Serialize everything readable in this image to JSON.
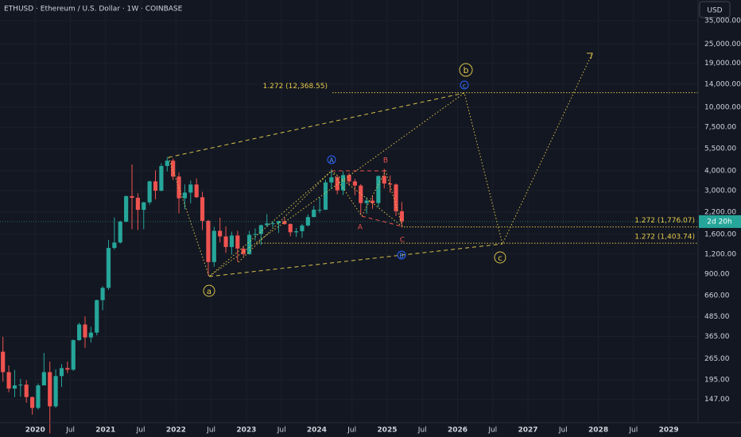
{
  "chart_data": {
    "type": "candlestick",
    "title": "ETHUSD · Ethereum / U.S. Dollar · 1W · COINBASE",
    "currency": "USD",
    "countdown": "2d 20h",
    "x": [
      "2019-07",
      "2019-08",
      "2019-09",
      "2019-10",
      "2019-11",
      "2019-12",
      "2020-01",
      "2020-02",
      "2020-03",
      "2020-04",
      "2020-05",
      "2020-06",
      "2020-07",
      "2020-08",
      "2020-09",
      "2020-10",
      "2020-11",
      "2020-12",
      "2021-01",
      "2021-02",
      "2021-03",
      "2021-04",
      "2021-05",
      "2021-06",
      "2021-07",
      "2021-08",
      "2021-09",
      "2021-10",
      "2021-11",
      "2021-12",
      "2022-01",
      "2022-02",
      "2022-03",
      "2022-04",
      "2022-05",
      "2022-06",
      "2022-07",
      "2022-08",
      "2022-09",
      "2022-10",
      "2022-11",
      "2022-12",
      "2023-01",
      "2023-02",
      "2023-03",
      "2023-04",
      "2023-05",
      "2023-06",
      "2023-07",
      "2023-08",
      "2023-09",
      "2023-10",
      "2023-11",
      "2023-12",
      "2024-01",
      "2024-02",
      "2024-03",
      "2024-04",
      "2024-05",
      "2024-06",
      "2024-07",
      "2024-08",
      "2024-09",
      "2024-10",
      "2024-11",
      "2024-12",
      "2025-01",
      "2025-02",
      "2025-03"
    ],
    "open": [
      293,
      218,
      172,
      180,
      182,
      152,
      130,
      180,
      218,
      133,
      206,
      231,
      226,
      346,
      434,
      360,
      386,
      617,
      737,
      1312,
      1419,
      1919,
      2773,
      2709,
      2275,
      2536,
      3434,
      3000,
      4288,
      4630,
      3680,
      2690,
      2920,
      3280,
      2730,
      1940,
      1070,
      1680,
      1550,
      1330,
      1570,
      1300,
      1200,
      1585,
      1605,
      1822,
      1870,
      1875,
      1935,
      1855,
      1645,
      1670,
      1815,
      2050,
      2280,
      2280,
      3380,
      3640,
      3015,
      3760,
      3430,
      3230,
      2510,
      2600,
      2510,
      3710,
      3330,
      3280,
      2230
    ],
    "high": [
      363,
      240,
      225,
      198,
      194,
      153,
      185,
      288,
      254,
      227,
      245,
      254,
      350,
      446,
      488,
      420,
      622,
      754,
      1475,
      2040,
      1948,
      2797,
      4380,
      2890,
      2550,
      3470,
      4028,
      4460,
      4890,
      4780,
      3900,
      3280,
      3480,
      3580,
      2950,
      1970,
      1780,
      2030,
      1790,
      1660,
      1680,
      1350,
      1680,
      1740,
      1840,
      2140,
      1930,
      1930,
      2030,
      1870,
      1750,
      1860,
      2130,
      2410,
      2715,
      3520,
      4090,
      3730,
      3970,
      3880,
      3560,
      3300,
      2730,
      2770,
      3740,
      4110,
      3740,
      3330,
      2550
    ],
    "low": [
      190,
      163,
      152,
      153,
      140,
      118,
      127,
      180,
      90,
      130,
      176,
      215,
      222,
      343,
      310,
      334,
      371,
      533,
      715,
      1280,
      1400,
      1900,
      1719,
      1700,
      1718,
      2450,
      2650,
      2970,
      3960,
      3500,
      2160,
      2300,
      2500,
      2700,
      1700,
      880,
      1000,
      1420,
      1220,
      1190,
      1070,
      1160,
      1190,
      1460,
      1370,
      1780,
      1760,
      1630,
      1830,
      1550,
      1540,
      1520,
      1790,
      2050,
      2170,
      2270,
      3060,
      2850,
      2820,
      3240,
      2810,
      2120,
      2150,
      2310,
      2360,
      3100,
      2920,
      2080,
      1760
    ],
    "close": [
      218,
      172,
      180,
      182,
      152,
      130,
      180,
      218,
      133,
      206,
      231,
      226,
      346,
      434,
      360,
      386,
      617,
      737,
      1312,
      1419,
      1919,
      2773,
      2709,
      2275,
      2536,
      3434,
      3000,
      4288,
      4630,
      3680,
      2690,
      2920,
      3280,
      2730,
      1940,
      1070,
      1680,
      1550,
      1330,
      1570,
      1300,
      1200,
      1585,
      1605,
      1822,
      1870,
      1875,
      1935,
      1855,
      1645,
      1670,
      1815,
      2050,
      2280,
      2280,
      3380,
      3640,
      3015,
      3760,
      3430,
      3230,
      2510,
      2600,
      2510,
      3710,
      3330,
      3280,
      2230,
      1920
    ],
    "up_color": "#26a69a",
    "down_color": "#ef5350",
    "log_scale": true,
    "grid": true,
    "ylim": [
      105,
      47200
    ],
    "yticks": [
      {
        "value": 35000,
        "label": "35,000.00"
      },
      {
        "value": 25000,
        "label": "25,000.00"
      },
      {
        "value": 19000,
        "label": "19,000.00"
      },
      {
        "value": 14000,
        "label": "14,000.00"
      },
      {
        "value": 10000,
        "label": "10,000.00"
      },
      {
        "value": 7500,
        "label": "7,500.00"
      },
      {
        "value": 5500,
        "label": "5,500.00"
      },
      {
        "value": 4000,
        "label": "4,000.00"
      },
      {
        "value": 3000,
        "label": "3,000.00"
      },
      {
        "value": 2200,
        "label": "2,200.00"
      },
      {
        "value": 1600,
        "label": "1,600.00"
      },
      {
        "value": 1200,
        "label": "1,200.00"
      },
      {
        "value": 900,
        "label": "900.00"
      },
      {
        "value": 660,
        "label": "660.00"
      },
      {
        "value": 485,
        "label": "485.00"
      },
      {
        "value": 365,
        "label": "365.00"
      },
      {
        "value": 265,
        "label": "265.00"
      },
      {
        "value": 195,
        "label": "195.00"
      },
      {
        "value": 147,
        "label": "147.00"
      }
    ],
    "xlim": [
      "2019-07",
      "2029-06"
    ],
    "xticks": [
      {
        "value": "2020-01",
        "label": "2020"
      },
      {
        "value": "2020-07",
        "label": "Jul"
      },
      {
        "value": "2021-01",
        "label": "2021"
      },
      {
        "value": "2021-07",
        "label": "Jul"
      },
      {
        "value": "2022-01",
        "label": "2022"
      },
      {
        "value": "2022-07",
        "label": "Jul"
      },
      {
        "value": "2023-01",
        "label": "2023"
      },
      {
        "value": "2023-07",
        "label": "Jul"
      },
      {
        "value": "2024-01",
        "label": "2024"
      },
      {
        "value": "2024-07",
        "label": "Jul"
      },
      {
        "value": "2025-01",
        "label": "2025"
      },
      {
        "value": "2025-07",
        "label": "Jul"
      },
      {
        "value": "2026-01",
        "label": "2026"
      },
      {
        "value": "2026-07",
        "label": "Jul"
      },
      {
        "value": "2027-01",
        "label": "2027"
      },
      {
        "value": "2027-07",
        "label": "Jul"
      },
      {
        "value": "2028-01",
        "label": "2028"
      },
      {
        "value": "2028-07",
        "label": "Jul"
      },
      {
        "value": "2029-01",
        "label": "2029"
      }
    ],
    "fib_levels": [
      {
        "label": "1.272 (12,368.55)",
        "value": 12368.55
      },
      {
        "label": "1.272 (1,776.07)",
        "value": 1776.07
      },
      {
        "label": "1.272 (1,403.74)",
        "value": 1403.74
      }
    ],
    "wave_labels": [
      "b",
      "c",
      "a",
      "A",
      "B",
      "A",
      "C",
      "c",
      "B"
    ]
  }
}
